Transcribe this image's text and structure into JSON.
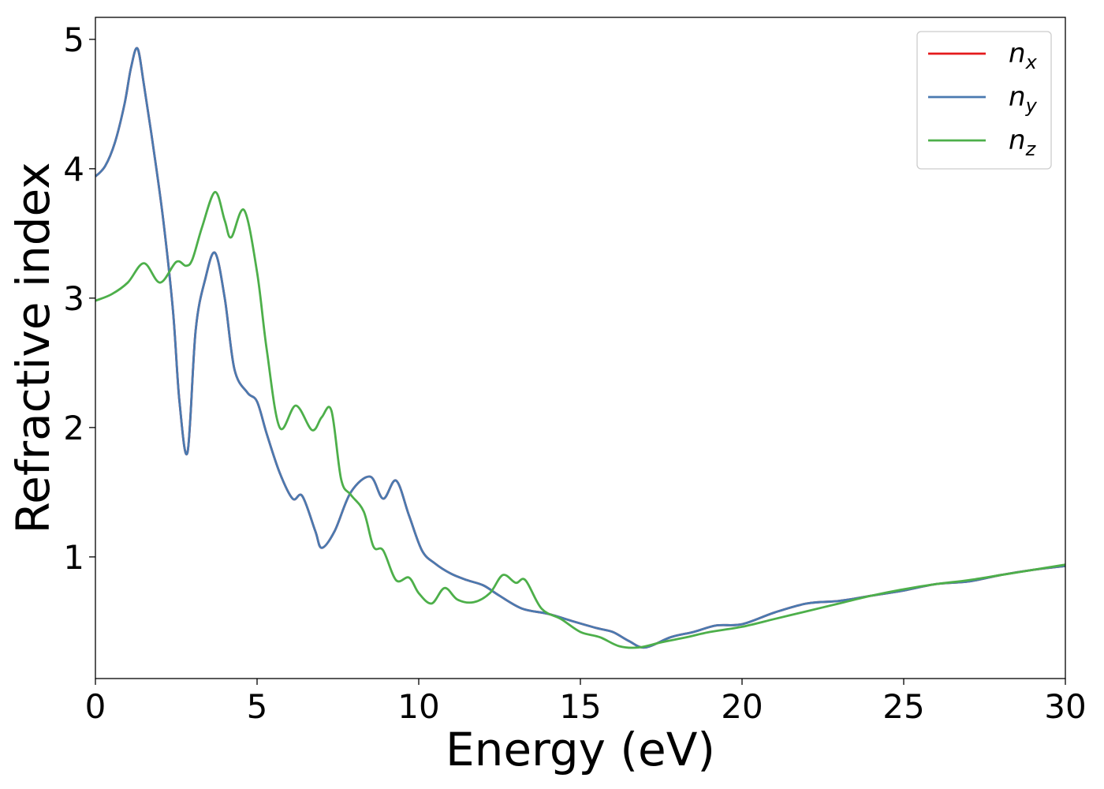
{
  "chart_data": {
    "type": "line",
    "xlabel": "Energy (eV)",
    "ylabel": "Refractive index",
    "xlim": [
      0,
      30
    ],
    "ylim": [
      0.06,
      5.17
    ],
    "xticks": [
      "0",
      "5",
      "10",
      "15",
      "20",
      "25",
      "30"
    ],
    "yticks": [
      "1",
      "2",
      "3",
      "4",
      "5"
    ],
    "grid": false,
    "legend_position": "top-right",
    "series": [
      {
        "name": "n_x",
        "label_base": "n",
        "label_sub": "x",
        "color": "#e41a1c",
        "x": [
          0,
          0.3,
          0.6,
          0.9,
          1.1,
          1.3,
          1.5,
          1.8,
          2.1,
          2.4,
          2.6,
          2.85,
          3.1,
          3.4,
          3.7,
          4.0,
          4.3,
          4.7,
          5.0,
          5.3,
          5.7,
          6.1,
          6.4,
          6.8,
          7.0,
          7.4,
          7.9,
          8.5,
          8.9,
          9.3,
          9.7,
          10.1,
          10.5,
          11.0,
          11.5,
          12.0,
          12.5,
          13.2,
          14.0,
          14.8,
          15.5,
          16.0,
          16.5,
          17.0,
          17.8,
          18.5,
          19.2,
          20.0,
          21.0,
          22.0,
          23.0,
          24.0,
          25.0,
          26.0,
          27.0,
          28.0,
          29.0,
          30.0
        ],
        "y": [
          3.94,
          4.02,
          4.2,
          4.5,
          4.78,
          4.93,
          4.65,
          4.15,
          3.6,
          2.9,
          2.2,
          1.81,
          2.75,
          3.15,
          3.35,
          3.0,
          2.45,
          2.27,
          2.2,
          1.95,
          1.65,
          1.45,
          1.47,
          1.2,
          1.07,
          1.2,
          1.5,
          1.62,
          1.45,
          1.59,
          1.32,
          1.05,
          0.95,
          0.87,
          0.82,
          0.78,
          0.7,
          0.6,
          0.56,
          0.5,
          0.45,
          0.42,
          0.35,
          0.3,
          0.38,
          0.42,
          0.47,
          0.48,
          0.57,
          0.64,
          0.66,
          0.7,
          0.74,
          0.79,
          0.81,
          0.86,
          0.9,
          0.93
        ]
      },
      {
        "name": "n_y",
        "label_base": "n",
        "label_sub": "y",
        "color": "#4a7ab0",
        "x": [
          0,
          0.3,
          0.6,
          0.9,
          1.1,
          1.3,
          1.5,
          1.8,
          2.1,
          2.4,
          2.6,
          2.85,
          3.1,
          3.4,
          3.7,
          4.0,
          4.3,
          4.7,
          5.0,
          5.3,
          5.7,
          6.1,
          6.4,
          6.8,
          7.0,
          7.4,
          7.9,
          8.5,
          8.9,
          9.3,
          9.7,
          10.1,
          10.5,
          11.0,
          11.5,
          12.0,
          12.5,
          13.2,
          14.0,
          14.8,
          15.5,
          16.0,
          16.5,
          17.0,
          17.8,
          18.5,
          19.2,
          20.0,
          21.0,
          22.0,
          23.0,
          24.0,
          25.0,
          26.0,
          27.0,
          28.0,
          29.0,
          30.0
        ],
        "y": [
          3.94,
          4.02,
          4.2,
          4.5,
          4.78,
          4.93,
          4.65,
          4.15,
          3.6,
          2.9,
          2.2,
          1.81,
          2.75,
          3.15,
          3.35,
          3.0,
          2.45,
          2.27,
          2.2,
          1.95,
          1.65,
          1.45,
          1.47,
          1.2,
          1.07,
          1.2,
          1.5,
          1.62,
          1.45,
          1.59,
          1.32,
          1.05,
          0.95,
          0.87,
          0.82,
          0.78,
          0.7,
          0.6,
          0.56,
          0.5,
          0.45,
          0.42,
          0.35,
          0.3,
          0.38,
          0.42,
          0.47,
          0.48,
          0.57,
          0.64,
          0.66,
          0.7,
          0.74,
          0.79,
          0.81,
          0.86,
          0.9,
          0.93
        ]
      },
      {
        "name": "n_z",
        "label_base": "n",
        "label_sub": "z",
        "color": "#4daf4a",
        "x": [
          0,
          0.5,
          1.0,
          1.5,
          2.0,
          2.5,
          2.8,
          3.0,
          3.3,
          3.7,
          4.0,
          4.2,
          4.6,
          5.0,
          5.3,
          5.7,
          6.2,
          6.7,
          7.0,
          7.3,
          7.6,
          7.9,
          8.3,
          8.6,
          8.9,
          9.3,
          9.7,
          10.0,
          10.4,
          10.8,
          11.2,
          11.7,
          12.2,
          12.6,
          13.0,
          13.3,
          13.8,
          14.4,
          15.0,
          15.6,
          16.2,
          16.8,
          17.5,
          18.3,
          19.0,
          20.0,
          21.0,
          22.0,
          23.0,
          24.0,
          25.0,
          26.0,
          27.0,
          28.0,
          29.0,
          30.0
        ],
        "y": [
          2.98,
          3.03,
          3.12,
          3.27,
          3.12,
          3.28,
          3.25,
          3.3,
          3.55,
          3.82,
          3.6,
          3.47,
          3.68,
          3.2,
          2.6,
          2.0,
          2.17,
          1.98,
          2.08,
          2.13,
          1.6,
          1.48,
          1.35,
          1.08,
          1.05,
          0.82,
          0.84,
          0.72,
          0.64,
          0.76,
          0.67,
          0.65,
          0.72,
          0.86,
          0.8,
          0.82,
          0.6,
          0.52,
          0.42,
          0.38,
          0.31,
          0.3,
          0.34,
          0.38,
          0.42,
          0.46,
          0.52,
          0.58,
          0.64,
          0.7,
          0.75,
          0.79,
          0.82,
          0.86,
          0.9,
          0.94
        ]
      }
    ]
  }
}
